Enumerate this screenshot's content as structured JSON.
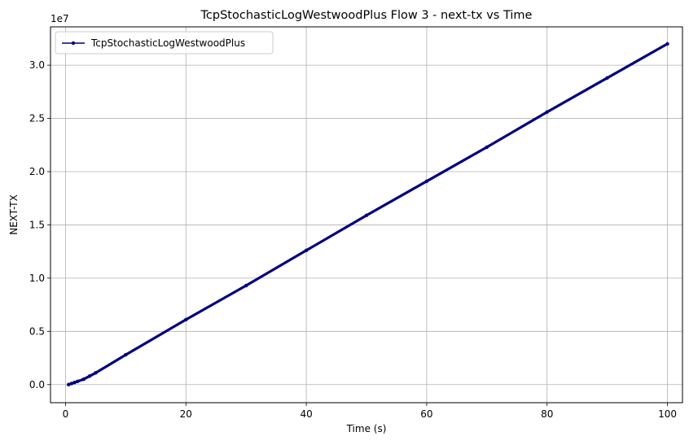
{
  "chart_data": {
    "type": "line",
    "title": "TcpStochasticLogWestwoodPlus Flow 3 - next-tx vs Time",
    "xlabel": "Time (s)",
    "ylabel": "NEXT-TX",
    "y_offset_label": "1e7",
    "xlim": [
      -2.5,
      102.5
    ],
    "ylim": [
      -0.17,
      3.36
    ],
    "x_ticks": [
      0,
      20,
      40,
      60,
      80,
      100
    ],
    "x_tick_labels": [
      "0",
      "20",
      "40",
      "60",
      "80",
      "100"
    ],
    "y_ticks": [
      0.0,
      0.5,
      1.0,
      1.5,
      2.0,
      2.5,
      3.0
    ],
    "y_tick_labels": [
      "0.0",
      "0.5",
      "1.0",
      "1.5",
      "2.0",
      "2.5",
      "3.0"
    ],
    "grid": true,
    "legend": "top-left",
    "series": [
      {
        "name": "TcpStochasticLogWestwoodPlus",
        "color": "#000080",
        "x": [
          0.5,
          1.0,
          1.5,
          2.0,
          3.0,
          4.0,
          5.0,
          10.0,
          20.0,
          30.0,
          40.0,
          50.0,
          60.0,
          70.0,
          80.0,
          90.0,
          100.0
        ],
        "y": [
          0.0,
          0.01,
          0.02,
          0.03,
          0.05,
          0.08,
          0.11,
          0.28,
          0.61,
          0.93,
          1.26,
          1.59,
          1.91,
          2.23,
          2.56,
          2.88,
          3.2
        ]
      }
    ]
  }
}
